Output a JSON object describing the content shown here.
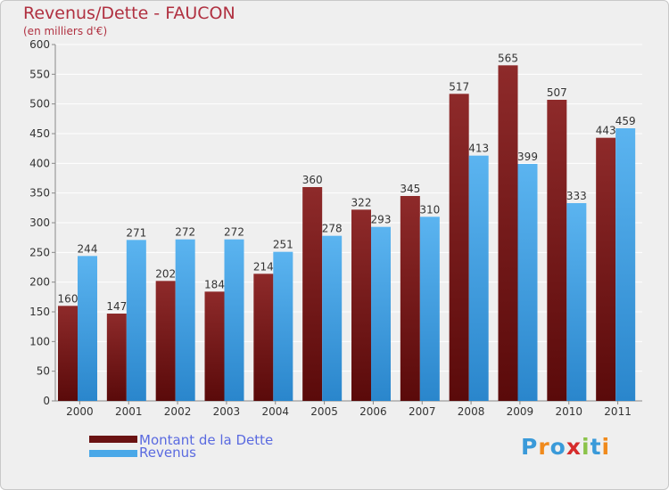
{
  "chart_data": {
    "type": "bar",
    "title": "Revenus/Dette - FAUCON",
    "subtitle": "(en milliers d'€)",
    "categories": [
      "2000",
      "2001",
      "2002",
      "2003",
      "2004",
      "2005",
      "2006",
      "2007",
      "2008",
      "2009",
      "2010",
      "2011"
    ],
    "series": [
      {
        "name": "Montant de la Dette",
        "values": [
          160,
          147,
          202,
          184,
          214,
          360,
          322,
          345,
          517,
          565,
          507,
          443
        ],
        "color": "#7a1a1a"
      },
      {
        "name": "Revenus",
        "values": [
          244,
          271,
          272,
          272,
          251,
          278,
          293,
          310,
          413,
          399,
          333,
          459
        ],
        "color": "#4aa8e8"
      }
    ],
    "yticks": [
      0,
      50,
      100,
      150,
      200,
      250,
      300,
      350,
      400,
      450,
      500,
      550,
      600
    ],
    "ylim": [
      0,
      600
    ],
    "grid": true,
    "legend_position": "bottom-left"
  },
  "logo": {
    "letters": [
      "P",
      "r",
      "o",
      "x",
      "i",
      "t",
      "i"
    ],
    "colors": [
      "#3a9ad9",
      "#f08a1c",
      "#3a9ad9",
      "#d62b2b",
      "#8bc34a",
      "#3a9ad9",
      "#f08a1c"
    ]
  }
}
